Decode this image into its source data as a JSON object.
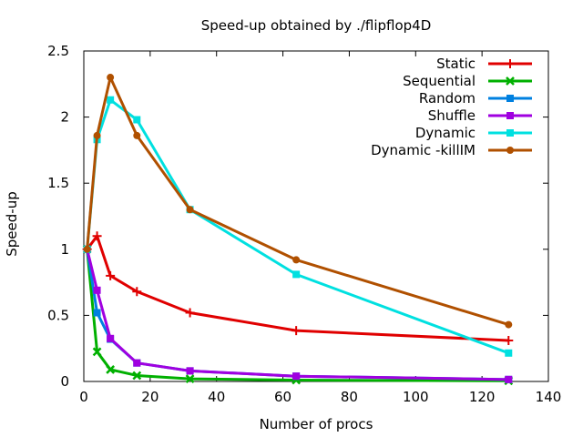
{
  "chart_data": {
    "type": "line",
    "title": "Speed-up obtained by ./flipflop4D",
    "xlabel": "Number of procs",
    "ylabel": "Speed-up",
    "xlim": [
      0,
      140
    ],
    "ylim": [
      0,
      2.5
    ],
    "xticks": [
      0,
      20,
      40,
      60,
      80,
      100,
      120,
      140
    ],
    "yticks": [
      0,
      0.5,
      1,
      1.5,
      2,
      2.5
    ],
    "xtick_labels": [
      "0",
      "20",
      "40",
      "60",
      "80",
      "100",
      "120",
      "140"
    ],
    "ytick_labels": [
      "0",
      "0.5",
      "1",
      "1.5",
      "2",
      "2.5"
    ],
    "grid": false,
    "legend_position": "top-right",
    "x": [
      1,
      4,
      8,
      16,
      32,
      64,
      128
    ],
    "series": [
      {
        "name": "Static",
        "color": "#e00000",
        "marker": "plus",
        "values": [
          1.0,
          1.1,
          0.8,
          0.68,
          0.52,
          0.385,
          0.31
        ]
      },
      {
        "name": "Sequential",
        "color": "#00b000",
        "marker": "cross",
        "values": [
          1.0,
          0.225,
          0.09,
          0.045,
          0.02,
          0.01,
          0.005
        ]
      },
      {
        "name": "Random",
        "color": "#0080e0",
        "marker": "square",
        "values": [
          1.0,
          0.52,
          0.32,
          0.14,
          0.08,
          0.04,
          0.015
        ]
      },
      {
        "name": "Shuffle",
        "color": "#a000e0",
        "marker": "square",
        "values": [
          1.0,
          0.69,
          0.325,
          0.14,
          0.08,
          0.04,
          0.015
        ]
      },
      {
        "name": "Dynamic",
        "color": "#00e0e0",
        "marker": "square",
        "values": [
          1.0,
          1.83,
          2.13,
          1.98,
          1.3,
          0.81,
          0.215
        ]
      },
      {
        "name": "Dynamic -killIM",
        "color": "#b05000",
        "marker": "circle",
        "values": [
          1.0,
          1.86,
          2.3,
          1.86,
          1.3,
          0.92,
          0.43
        ]
      }
    ]
  }
}
